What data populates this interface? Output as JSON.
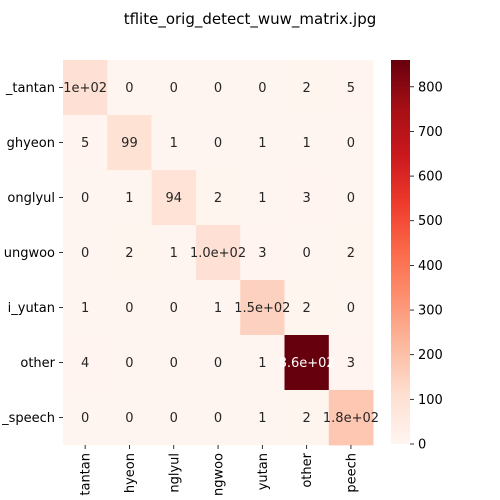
{
  "chart_data": {
    "type": "heatmap",
    "title": "tflite_orig_detect_wuw_matrix.jpg",
    "xlabel": "",
    "ylabel": "",
    "y_tick_labels": [
      "_tantan",
      "ghyeon",
      "onglyul",
      "ungwoo",
      "i_yutan",
      "other",
      "_speech"
    ],
    "x_tick_labels": [
      "tantan",
      "hyeon",
      "nglyul",
      "ngwoo",
      "yutan",
      "other",
      "peech"
    ],
    "values": [
      [
        100,
        0,
        0,
        0,
        0,
        2,
        5
      ],
      [
        5,
        99,
        1,
        0,
        1,
        1,
        0
      ],
      [
        0,
        1,
        94,
        2,
        1,
        3,
        0
      ],
      [
        0,
        2,
        1,
        100,
        3,
        0,
        2
      ],
      [
        1,
        0,
        0,
        1,
        150,
        2,
        0
      ],
      [
        4,
        0,
        0,
        0,
        1,
        860,
        3
      ],
      [
        0,
        0,
        0,
        0,
        1,
        2,
        180
      ]
    ],
    "cell_labels": [
      [
        "1e+02",
        "0",
        "0",
        "0",
        "0",
        "2",
        "5"
      ],
      [
        "5",
        "99",
        "1",
        "0",
        "1",
        "1",
        "0"
      ],
      [
        "0",
        "1",
        "94",
        "2",
        "1",
        "3",
        "0"
      ],
      [
        "0",
        "2",
        "1",
        "1.0e+02",
        "3",
        "0",
        "2"
      ],
      [
        "1",
        "0",
        "0",
        "1",
        "1.5e+02",
        "2",
        "0"
      ],
      [
        "4",
        "0",
        "0",
        "0",
        "1",
        "8.6e+02",
        "3"
      ],
      [
        "0",
        "0",
        "0",
        "0",
        "1",
        "2",
        "1.8e+02"
      ]
    ],
    "colormap": "Reds",
    "colorbar": {
      "min": 0,
      "max": 860,
      "ticks": [
        0,
        100,
        200,
        300,
        400,
        500,
        600,
        700,
        800
      ]
    },
    "grid": false,
    "legend": "none"
  }
}
